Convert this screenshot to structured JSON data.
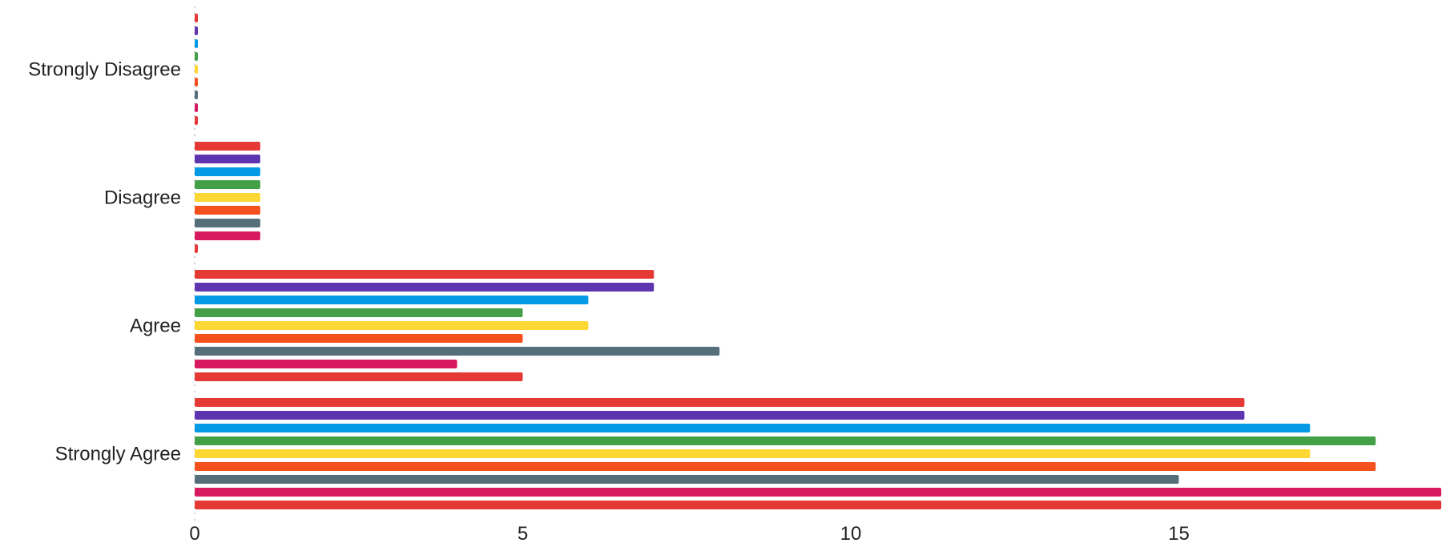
{
  "chart_data": {
    "type": "bar",
    "orientation": "horizontal",
    "categories": [
      "Strongly Disagree",
      "Disagree",
      "Agree",
      "Strongly Agree"
    ],
    "series": [
      {
        "color": "#e53935",
        "values": [
          0,
          1,
          7,
          16
        ]
      },
      {
        "color": "#5e35b1",
        "values": [
          0,
          1,
          7,
          16
        ]
      },
      {
        "color": "#039be5",
        "values": [
          0,
          1,
          6,
          17
        ]
      },
      {
        "color": "#43a047",
        "values": [
          0,
          1,
          5,
          18
        ]
      },
      {
        "color": "#fdd835",
        "values": [
          0,
          1,
          6,
          17
        ]
      },
      {
        "color": "#f4511e",
        "values": [
          0,
          1,
          5,
          18
        ]
      },
      {
        "color": "#546e7a",
        "values": [
          0,
          1,
          8,
          15
        ]
      },
      {
        "color": "#d81b60",
        "values": [
          0,
          1,
          4,
          19
        ]
      },
      {
        "color": "#e53935",
        "values": [
          0,
          0,
          5,
          19
        ]
      }
    ],
    "xticks": [
      0,
      5,
      10,
      15
    ],
    "xlim": [
      0,
      19
    ],
    "xlabel": "",
    "ylabel": "",
    "title": "",
    "grid": false,
    "legend": "none"
  }
}
